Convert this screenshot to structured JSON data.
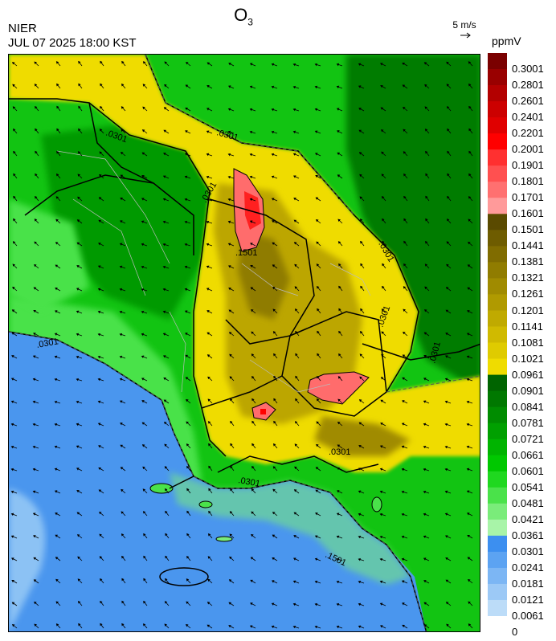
{
  "header": {
    "title": "O",
    "title_subscript": "3",
    "agency": "NIER",
    "datetime": "JUL 07 2025 18:00 KST"
  },
  "wind_reference": {
    "label": "5 m/s",
    "arrow_icon": "arrow-right-icon"
  },
  "colorbar": {
    "unit": "ppmV",
    "labels": [
      "0.3001",
      "0.2801",
      "0.2601",
      "0.2401",
      "0.2201",
      "0.2001",
      "0.1901",
      "0.1801",
      "0.1701",
      "0.1601",
      "0.1501",
      "0.1441",
      "0.1381",
      "0.1321",
      "0.1261",
      "0.1201",
      "0.1141",
      "0.1081",
      "0.1021",
      "0.0961",
      "0.0901",
      "0.0841",
      "0.0781",
      "0.0721",
      "0.0661",
      "0.0601",
      "0.0541",
      "0.0481",
      "0.0421",
      "0.0361",
      "0.0301",
      "0.0241",
      "0.0181",
      "0.0121",
      "0.0061",
      "0"
    ],
    "colors": [
      "#7a0000",
      "#990000",
      "#b30000",
      "#cc0000",
      "#e00000",
      "#ff0000",
      "#ff3030",
      "#ff5050",
      "#ff7070",
      "#ff9a9a",
      "#5a4a00",
      "#6e5c00",
      "#806c00",
      "#907c00",
      "#a08b00",
      "#b09a00",
      "#c0aa00",
      "#d0ba00",
      "#dfcb00",
      "#efdc00",
      "#006400",
      "#007800",
      "#008c00",
      "#00a000",
      "#00b400",
      "#00c800",
      "#1fd81f",
      "#4ae24a",
      "#7aec7a",
      "#a8f4a8",
      "#3c8ff0",
      "#5ca3f2",
      "#7cb6f4",
      "#9cc9f6",
      "#bcdcf8"
    ]
  },
  "map": {
    "contour_labels": [
      ".0301",
      ".0301",
      ".0301",
      ".0301",
      ".0301",
      ".0301",
      ".0301",
      ".0301",
      ".0301",
      ".1501",
      ".1501"
    ]
  }
}
